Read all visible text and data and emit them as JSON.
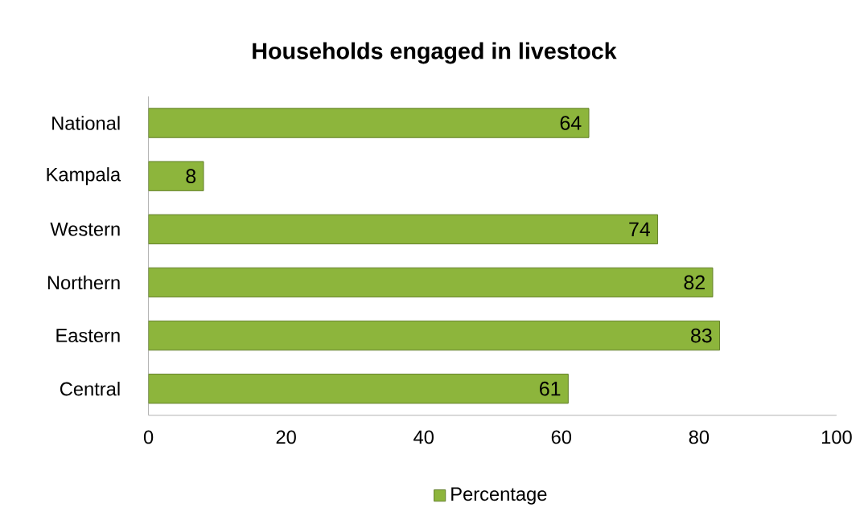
{
  "chart_data": {
    "type": "bar",
    "orientation": "horizontal",
    "title": "Households engaged in livestock",
    "categories": [
      "National",
      "Kampala",
      "Western",
      "Northern",
      "Eastern",
      "Central"
    ],
    "series": [
      {
        "name": "Percentage",
        "color": "#8db53c",
        "values": [
          64,
          8,
          74,
          82,
          83,
          61
        ]
      }
    ],
    "xlim": [
      0,
      100
    ],
    "xticks": [
      0,
      20,
      40,
      60,
      80,
      100
    ],
    "data_labels": true,
    "legend": "bottom",
    "grid": false
  }
}
